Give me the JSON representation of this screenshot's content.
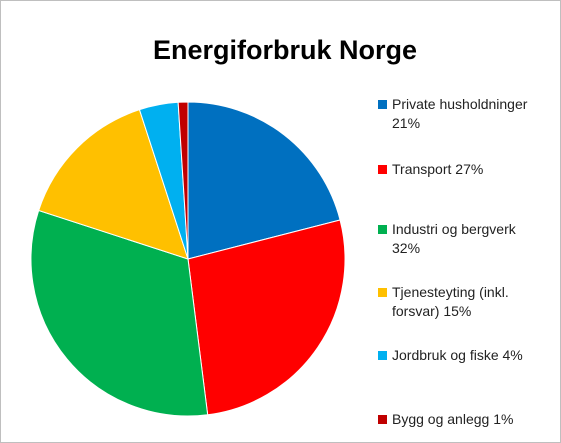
{
  "chart_data": {
    "type": "pie",
    "title": "Energiforbruk Norge",
    "categories": [
      "Private husholdninger 21%",
      "Transport 27%",
      "Industri og bergverk 32%",
      "Tjenesteyting (inkl. forsvar) 15%",
      "Jordbruk og fiske 4%",
      "Bygg og anlegg 1%"
    ],
    "values": [
      21,
      27,
      32,
      15,
      4,
      1
    ],
    "colors": [
      "#0070c0",
      "#ff0000",
      "#00b050",
      "#ffc000",
      "#00b0f0",
      "#c00000"
    ],
    "legend": "right"
  }
}
